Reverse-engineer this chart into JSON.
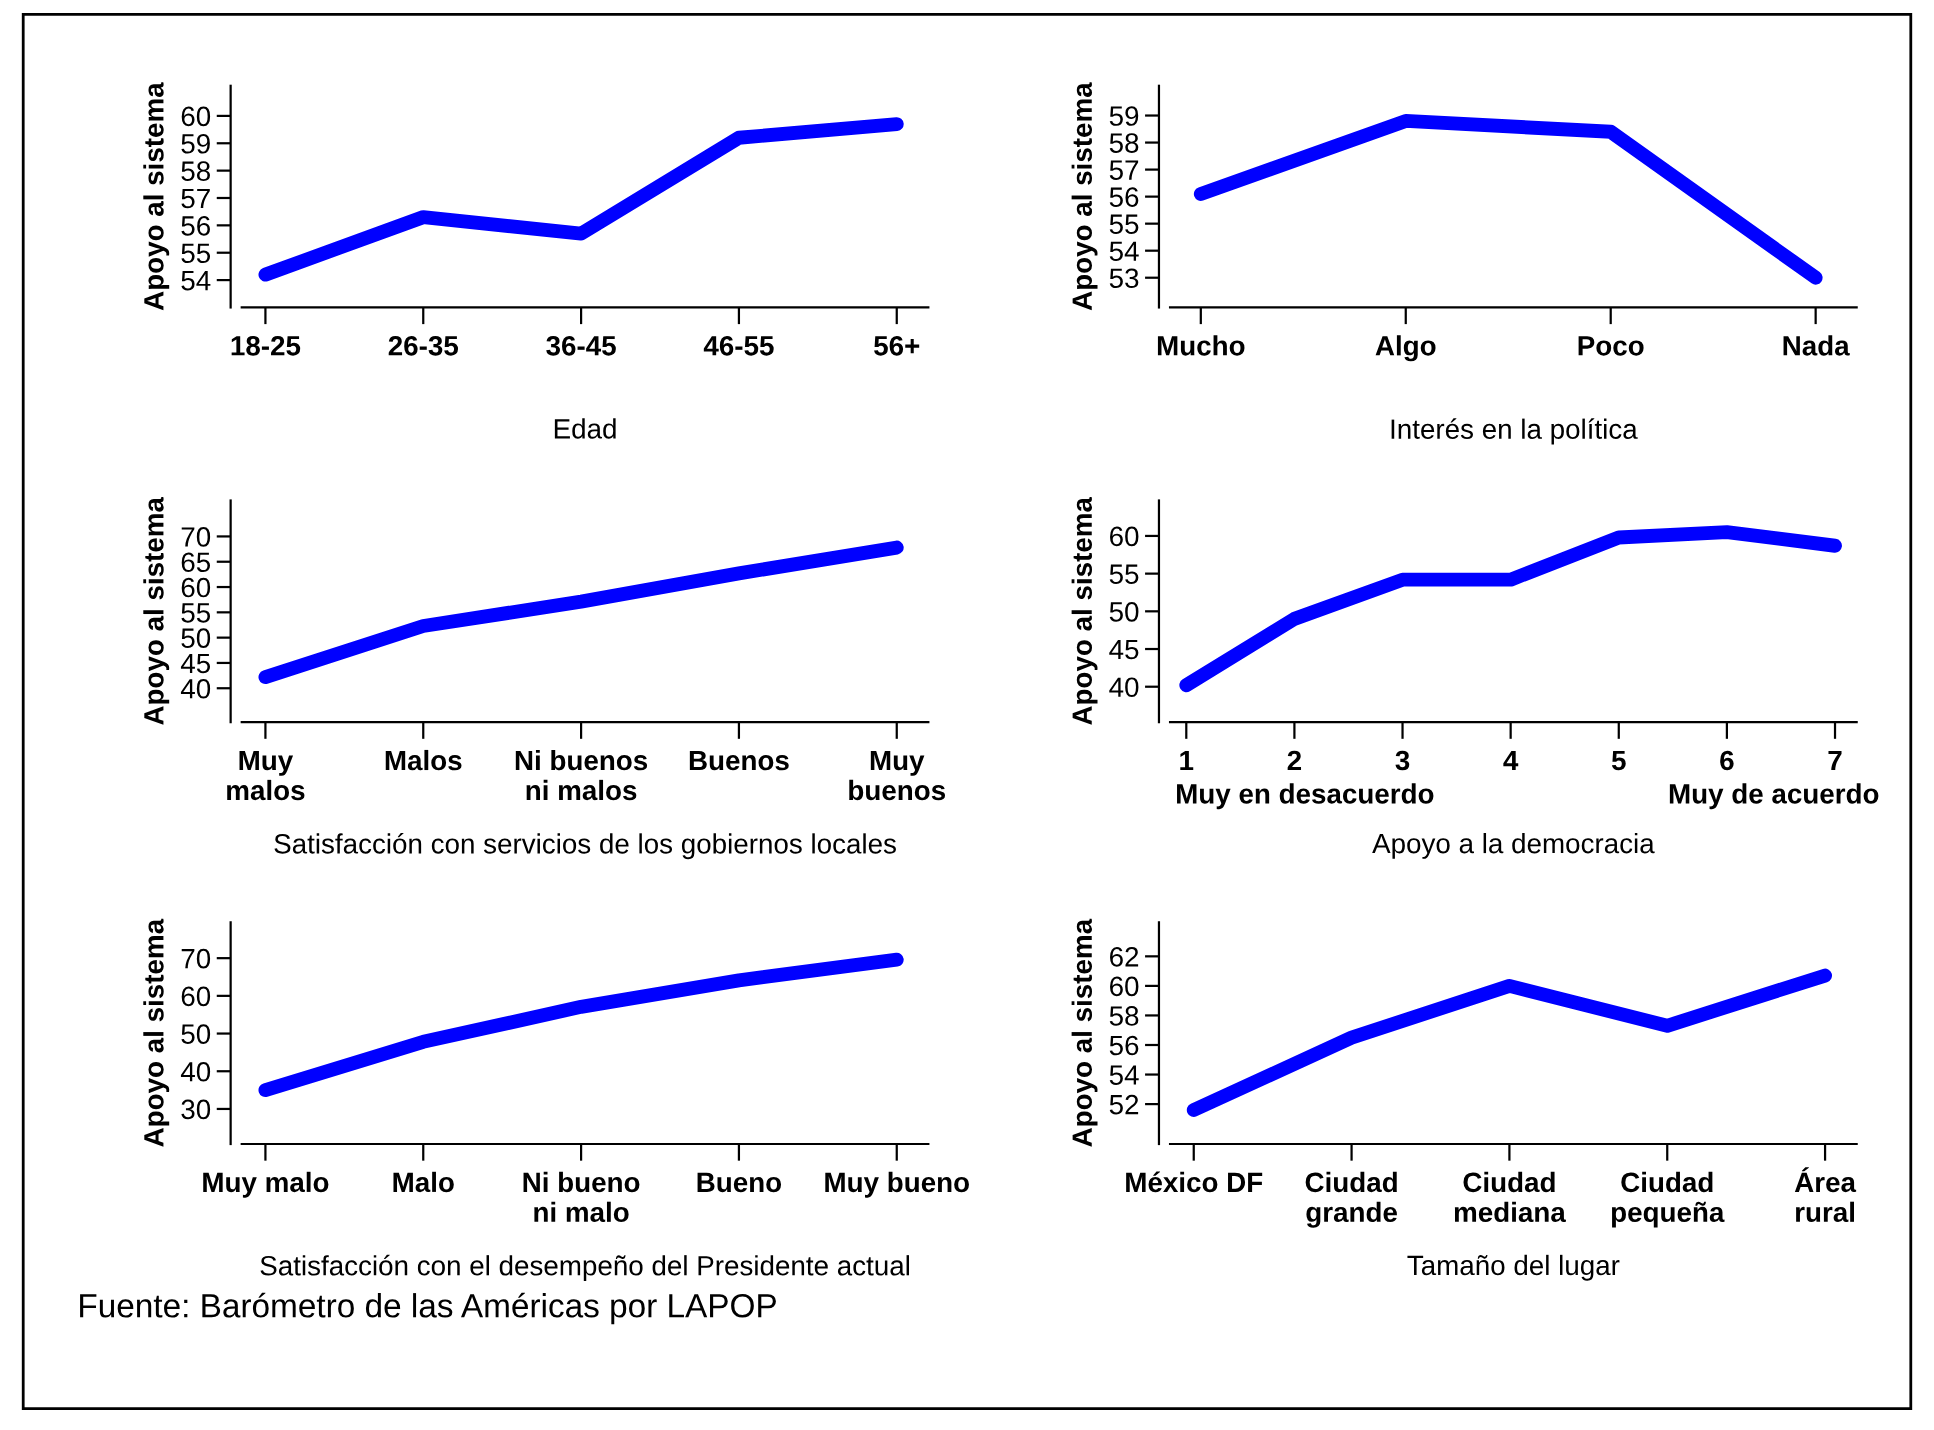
{
  "chart_data": [
    {
      "type": "line",
      "xlabel": "Edad",
      "ylabel": "Apoyo al sistema",
      "categories": [
        "18-25",
        "26-35",
        "36-45",
        "46-55",
        "56+"
      ],
      "series": [
        {
          "color": "#0000ff",
          "values": [
            54.2,
            56.3,
            55.7,
            59.2,
            59.7
          ]
        }
      ],
      "ylim": [
        53,
        61.1
      ],
      "yticks": [
        54,
        55,
        56,
        57,
        58,
        59,
        60
      ]
    },
    {
      "type": "line",
      "xlabel": "Interés en la política",
      "ylabel": "Apoyo al sistema",
      "categories": [
        "Mucho",
        "Algo",
        "Poco",
        "Nada"
      ],
      "series": [
        {
          "color": "#0000ff",
          "values": [
            56.1,
            58.8,
            58.4,
            53.0
          ]
        }
      ],
      "ylim": [
        51.9,
        60.1
      ],
      "yticks": [
        53,
        54,
        55,
        56,
        57,
        58,
        59
      ]
    },
    {
      "type": "line",
      "xlabel": "Satisfacción con servicios de los gobiernos locales",
      "ylabel": "Apoyo al sistema",
      "categories": [
        "Muy\nmalos",
        "Malos",
        "Ni buenos\nni malos",
        "Buenos",
        "Muy\nbuenos"
      ],
      "series": [
        {
          "color": "#0000ff",
          "values": [
            42.2,
            52.3,
            57.1,
            62.7,
            67.8
          ]
        }
      ],
      "ylim": [
        33.3,
        77.1
      ],
      "yticks": [
        40,
        45,
        50,
        55,
        60,
        65,
        70
      ]
    },
    {
      "type": "line",
      "xlabel": "Apoyo a la democracia",
      "ylabel": "Apoyo al sistema",
      "categories": [
        "1",
        "2",
        "3",
        "4",
        "5",
        "6",
        "7"
      ],
      "series": [
        {
          "color": "#0000ff",
          "values": [
            40.2,
            49.0,
            54.2,
            54.2,
            59.8,
            60.5,
            58.7
          ]
        }
      ],
      "ylim": [
        35.3,
        64.7
      ],
      "yticks": [
        40,
        45,
        50,
        55,
        60
      ],
      "annotations": [
        "Muy en desacuerdo",
        "Muy de acuerdo"
      ]
    },
    {
      "type": "line",
      "xlabel": "Satisfacción con el desempeño del Presidente actual",
      "ylabel": "Apoyo al sistema",
      "categories": [
        "Muy malo",
        "Malo",
        "Ni bueno\nni malo",
        "Bueno",
        "Muy bueno"
      ],
      "series": [
        {
          "color": "#0000ff",
          "values": [
            35.0,
            47.8,
            57.1,
            64.1,
            69.6
          ]
        }
      ],
      "ylim": [
        20.7,
        79.5
      ],
      "yticks": [
        30,
        40,
        50,
        60,
        70
      ],
      "annotations": [
        "Fuente: Barómetro de las Américas por LAPOP"
      ]
    },
    {
      "type": "line",
      "xlabel": "Tamaño del lugar",
      "ylabel": "Apoyo al sistema",
      "categories": [
        "México DF",
        "Ciudad\ngrande",
        "Ciudad\nmediana",
        "Ciudad\npequeña",
        "Área\nrural"
      ],
      "series": [
        {
          "color": "#0000ff",
          "values": [
            51.6,
            56.5,
            60.0,
            57.3,
            60.7
          ]
        }
      ],
      "ylim": [
        49.3,
        64.3
      ],
      "yticks": [
        52,
        54,
        56,
        58,
        60,
        62
      ]
    }
  ]
}
